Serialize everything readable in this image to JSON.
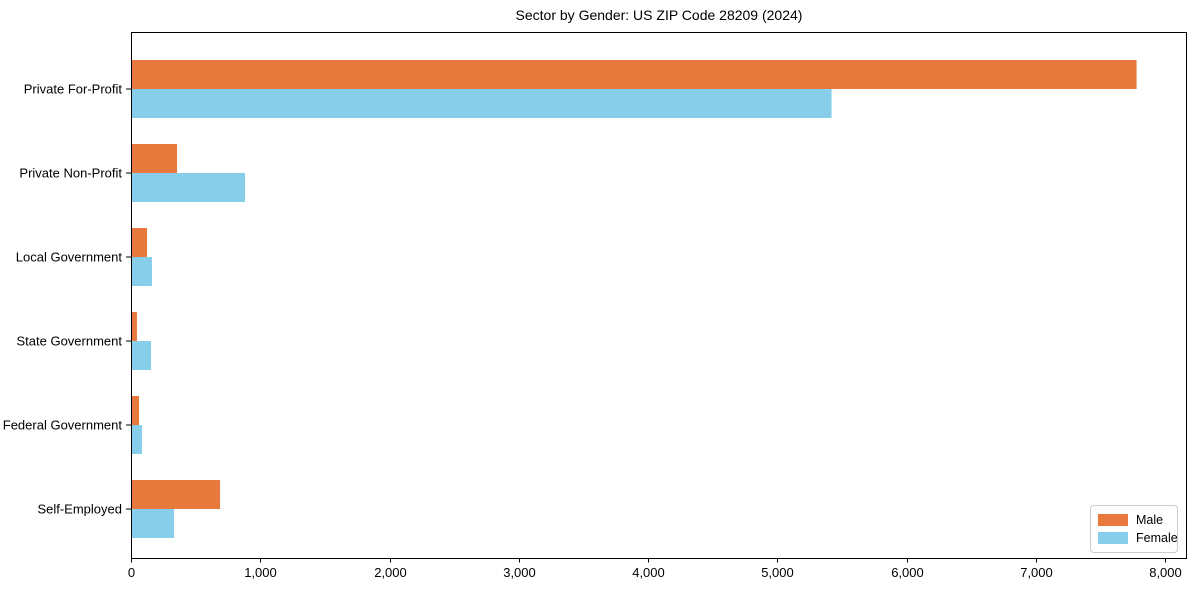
{
  "chart_data": {
    "type": "bar",
    "orientation": "horizontal",
    "title": "Sector by Gender: US ZIP Code 28209 (2024)",
    "categories": [
      "Private For-Profit",
      "Private Non-Profit",
      "Local Government",
      "State Government",
      "Federal Government",
      "Self-Employed"
    ],
    "series": [
      {
        "name": "Male",
        "color": "#e8793d",
        "values": [
          7780,
          356,
          124,
          46,
          62,
          689
        ]
      },
      {
        "name": "Female",
        "color": "#87ceeb",
        "values": [
          5420,
          882,
          162,
          155,
          85,
          333
        ]
      }
    ],
    "xlabel": "",
    "ylabel": "",
    "xlim": [
      0,
      8170
    ],
    "xticks": [
      0,
      1000,
      2000,
      3000,
      4000,
      5000,
      6000,
      7000,
      8000
    ],
    "xtick_labels": [
      "0",
      "1,000",
      "2,000",
      "3,000",
      "4,000",
      "5,000",
      "6,000",
      "7,000",
      "8,000"
    ],
    "grid": false,
    "legend": {
      "position": "lower right"
    },
    "colors": {
      "axis": "#000000",
      "text": "#000000",
      "legend_border": "#cccccc"
    }
  }
}
